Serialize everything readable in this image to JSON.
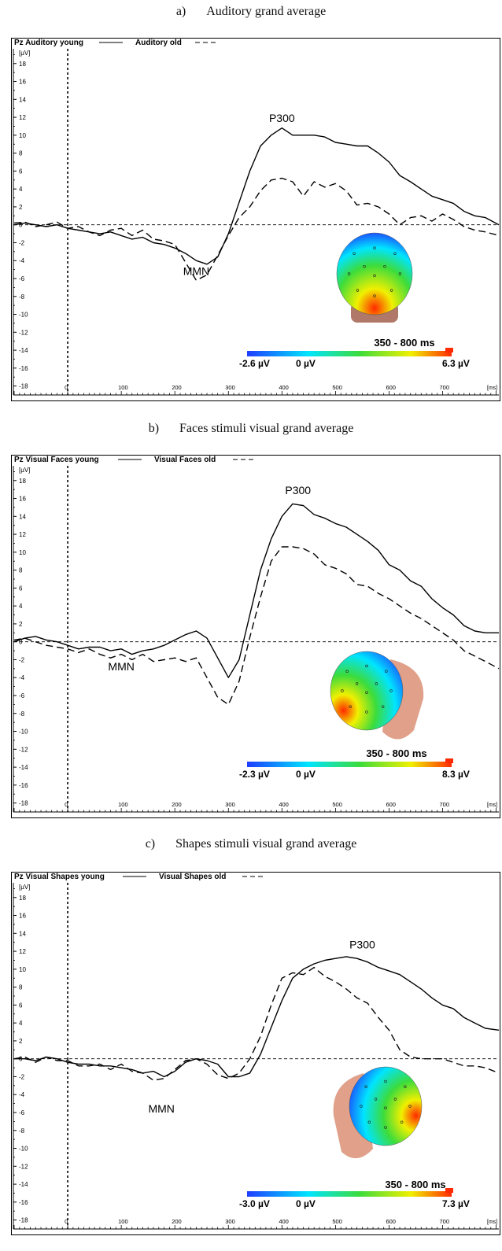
{
  "panels": [
    {
      "caption_letter": "a)",
      "caption_text": "Auditory grand average",
      "chart_data": {
        "type": "line",
        "title_young": "Pz Auditory young",
        "title_old": "Auditory old",
        "ylabel": "[µV]",
        "xlabel": "[ms]",
        "xlim": [
          -100,
          805
        ],
        "ylim": [
          -19,
          20
        ],
        "x_ticks": [
          0,
          100,
          200,
          300,
          400,
          500,
          600,
          700
        ],
        "y_ticks": [
          18,
          16,
          14,
          12,
          10,
          8,
          6,
          4,
          2,
          0,
          -2,
          -4,
          -6,
          -8,
          -10,
          -12,
          -14,
          -16,
          -18
        ],
        "grid": false,
        "annotations": [
          {
            "text": "P300",
            "x": 400,
            "y": 11.5
          },
          {
            "text": "MMN",
            "x": 240,
            "y": -5.6
          }
        ],
        "topomap": {
          "window": "350 - 800 ms",
          "min_label": "-2.6 µV",
          "zero_label": "0 µV",
          "max_label": "6.3 µV",
          "view": "back"
        },
        "series": [
          {
            "name": "young",
            "style": "solid",
            "x": [
              -100,
              -80,
              -60,
              -40,
              -20,
              0,
              20,
              40,
              60,
              80,
              100,
              120,
              140,
              160,
              180,
              200,
              220,
              240,
              260,
              280,
              300,
              320,
              340,
              360,
              380,
              400,
              420,
              440,
              460,
              480,
              500,
              520,
              540,
              560,
              580,
              600,
              620,
              640,
              660,
              680,
              700,
              720,
              740,
              760,
              780,
              805
            ],
            "y": [
              0,
              0.2,
              0,
              -0.2,
              0,
              -0.4,
              -0.6,
              -0.8,
              -1,
              -0.8,
              -1.2,
              -1.6,
              -1.4,
              -2,
              -2.2,
              -2.6,
              -3.2,
              -4,
              -4.4,
              -3.6,
              -1,
              2.5,
              6,
              8.8,
              10,
              10.8,
              10,
              10,
              10,
              9.8,
              9.2,
              9,
              8.8,
              8.8,
              8,
              7,
              5.5,
              4.8,
              4,
              3.2,
              2.8,
              2.4,
              1.5,
              1,
              0.8,
              0
            ]
          },
          {
            "name": "old",
            "style": "dashed",
            "x": [
              -100,
              -80,
              -60,
              -40,
              -20,
              0,
              20,
              40,
              60,
              80,
              100,
              120,
              140,
              160,
              180,
              200,
              220,
              240,
              260,
              280,
              300,
              320,
              340,
              360,
              380,
              400,
              420,
              440,
              460,
              480,
              500,
              520,
              540,
              560,
              580,
              600,
              620,
              640,
              660,
              680,
              700,
              720,
              740,
              760,
              780,
              805
            ],
            "y": [
              0.2,
              0.3,
              -0.2,
              0,
              0.3,
              -0.4,
              -0.2,
              -0.8,
              -1.2,
              -0.6,
              -0.4,
              -1.2,
              -0.6,
              -1.6,
              -1.8,
              -2.2,
              -4.2,
              -6.2,
              -5.6,
              -3.4,
              -1.2,
              0.8,
              2,
              3.8,
              5,
              5.2,
              4.8,
              3.2,
              4.8,
              4.2,
              4.6,
              3.8,
              2.2,
              2.4,
              2,
              1.2,
              0,
              0.8,
              1,
              0.4,
              1.2,
              0.6,
              -0.2,
              -0.6,
              -0.8,
              -1.2
            ]
          }
        ]
      }
    },
    {
      "caption_letter": "b)",
      "caption_text": "Faces stimuli visual grand average",
      "chart_data": {
        "type": "line",
        "title_young": "Pz Visual Faces young",
        "title_old": "Visual Faces old",
        "ylabel": "[µV]",
        "xlabel": "[ms]",
        "xlim": [
          -100,
          805
        ],
        "ylim": [
          -19,
          20
        ],
        "x_ticks": [
          0,
          100,
          200,
          300,
          400,
          500,
          600,
          700
        ],
        "y_ticks": [
          18,
          16,
          14,
          12,
          10,
          8,
          6,
          4,
          2,
          0,
          -2,
          -4,
          -6,
          -8,
          -10,
          -12,
          -14,
          -16,
          -18
        ],
        "grid": false,
        "annotations": [
          {
            "text": "P300",
            "x": 430,
            "y": 16.5
          },
          {
            "text": "MMN",
            "x": 100,
            "y": -3.2
          }
        ],
        "topomap": {
          "window": "350 - 800 ms",
          "min_label": "-2.3 µV",
          "zero_label": "0 µV",
          "max_label": "8.3 µV",
          "view": "left-back"
        },
        "series": [
          {
            "name": "young",
            "style": "solid",
            "x": [
              -100,
              -80,
              -60,
              -40,
              -20,
              0,
              20,
              40,
              60,
              80,
              100,
              120,
              140,
              160,
              180,
              200,
              220,
              240,
              260,
              280,
              300,
              320,
              340,
              360,
              380,
              400,
              420,
              440,
              460,
              480,
              500,
              520,
              540,
              560,
              580,
              600,
              620,
              640,
              660,
              680,
              700,
              720,
              740,
              760,
              780,
              805
            ],
            "y": [
              0,
              0.4,
              0.6,
              0.2,
              0,
              -0.4,
              -0.8,
              -0.6,
              -0.6,
              -1,
              -0.8,
              -1.4,
              -1,
              -0.8,
              -0.4,
              0.2,
              0.8,
              1.2,
              0.4,
              -1.8,
              -4,
              -2,
              3,
              8,
              11.5,
              14,
              15.4,
              15.2,
              14.2,
              13.8,
              13.2,
              12.8,
              12,
              11.2,
              10.2,
              8.6,
              8,
              6.8,
              6.2,
              4.8,
              3.8,
              3,
              1.8,
              1.2,
              1,
              1
            ]
          },
          {
            "name": "old",
            "style": "dashed",
            "x": [
              -100,
              -80,
              -60,
              -40,
              -20,
              0,
              20,
              40,
              60,
              80,
              100,
              120,
              140,
              160,
              180,
              200,
              220,
              240,
              260,
              280,
              300,
              320,
              340,
              360,
              380,
              400,
              420,
              440,
              460,
              480,
              500,
              520,
              540,
              560,
              580,
              600,
              620,
              640,
              660,
              680,
              700,
              720,
              740,
              760,
              780,
              805
            ],
            "y": [
              0.2,
              0.4,
              0,
              -0.4,
              -0.6,
              -0.8,
              -1.2,
              -0.8,
              -1.4,
              -1.8,
              -1.4,
              -2,
              -1.4,
              -2.2,
              -2,
              -1.8,
              -2.2,
              -1.8,
              -4,
              -6.2,
              -7,
              -4.4,
              0.5,
              5,
              9,
              10.6,
              10.6,
              10.4,
              9.8,
              8.6,
              8.2,
              7.6,
              6.4,
              6.2,
              5.4,
              4.8,
              4,
              3.2,
              2.6,
              1.8,
              1,
              0.2,
              -1,
              -1.6,
              -2.2,
              -3
            ]
          }
        ]
      }
    },
    {
      "caption_letter": "c)",
      "caption_text": "Shapes stimuli visual grand average",
      "chart_data": {
        "type": "line",
        "title_young": "Pz Visual Shapes young",
        "title_old": "Visual Shapes old",
        "ylabel": "[µV]",
        "xlabel": "[ms]",
        "xlim": [
          -100,
          805
        ],
        "ylim": [
          -19,
          20
        ],
        "x_ticks": [
          0,
          100,
          200,
          300,
          400,
          500,
          600,
          700
        ],
        "y_ticks": [
          18,
          16,
          14,
          12,
          10,
          8,
          6,
          4,
          2,
          0,
          -2,
          -4,
          -6,
          -8,
          -10,
          -12,
          -14,
          -16,
          -18
        ],
        "grid": false,
        "annotations": [
          {
            "text": "P300",
            "x": 550,
            "y": 12.3
          },
          {
            "text": "MMN",
            "x": 175,
            "y": -6
          }
        ],
        "topomap": {
          "window": "350 - 800 ms",
          "min_label": "-3.0 µV",
          "zero_label": "0 µV",
          "max_label": "7.3 µV",
          "view": "right-back"
        },
        "series": [
          {
            "name": "young",
            "style": "solid",
            "x": [
              -100,
              -80,
              -60,
              -40,
              -20,
              0,
              20,
              40,
              60,
              80,
              100,
              120,
              140,
              160,
              180,
              200,
              220,
              240,
              260,
              280,
              300,
              320,
              340,
              360,
              380,
              400,
              420,
              440,
              460,
              480,
              500,
              520,
              540,
              560,
              580,
              600,
              620,
              640,
              660,
              680,
              700,
              720,
              740,
              760,
              780,
              805
            ],
            "y": [
              0,
              0,
              -0.2,
              0.2,
              0,
              -0.4,
              -0.6,
              -0.6,
              -0.8,
              -0.8,
              -1,
              -1.2,
              -1.6,
              -1.4,
              -2,
              -1.4,
              -0.4,
              0,
              -0.2,
              -0.6,
              -2,
              -2,
              -1.6,
              0.5,
              3.5,
              6.5,
              9,
              10,
              10.6,
              11,
              11.2,
              11.4,
              11.2,
              10.8,
              10.2,
              9.8,
              9.4,
              8.6,
              7.8,
              6.8,
              6,
              5.6,
              4.6,
              4,
              3.4,
              3.2
            ]
          },
          {
            "name": "old",
            "style": "dashed",
            "x": [
              -100,
              -80,
              -60,
              -40,
              -20,
              0,
              20,
              40,
              60,
              80,
              100,
              120,
              140,
              160,
              180,
              200,
              220,
              240,
              260,
              280,
              300,
              320,
              340,
              360,
              380,
              400,
              420,
              440,
              460,
              480,
              500,
              520,
              540,
              560,
              580,
              600,
              620,
              640,
              660,
              680,
              700,
              720,
              740,
              760,
              780,
              805
            ],
            "y": [
              0,
              0.2,
              -0.4,
              0.2,
              -0.2,
              -0.2,
              -0.8,
              -0.8,
              -0.6,
              -1.2,
              -0.6,
              -1.4,
              -1.6,
              -2.4,
              -2.2,
              -1.2,
              -0.2,
              0,
              -0.6,
              -1.8,
              -2.2,
              -1.6,
              0,
              2.5,
              6,
              9,
              9.6,
              9.4,
              10.2,
              9.2,
              8.6,
              7.8,
              6.8,
              6.2,
              4.6,
              3.2,
              1,
              0.2,
              0,
              0,
              0,
              -0.4,
              -0.8,
              -0.8,
              -1,
              -1.6
            ]
          }
        ]
      }
    }
  ],
  "palette": {
    "line": "#000000",
    "cold": "#1e3cff",
    "cyan": "#00e5ff",
    "green": "#3cdc3c",
    "yellow": "#f0f000",
    "hot": "#ff2a00",
    "skin": "#e0a08a",
    "neck_dark": "#b07868"
  }
}
